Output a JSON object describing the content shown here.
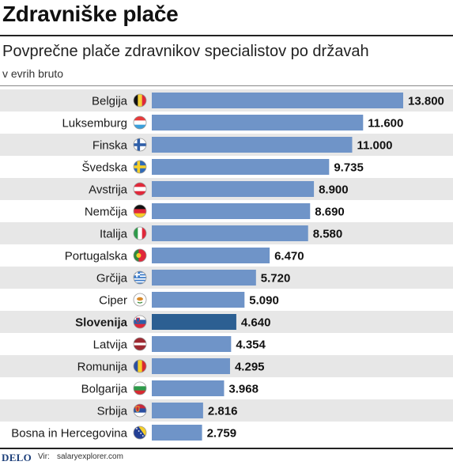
{
  "header": {
    "title": "Zdravniške plače",
    "subtitle": "Povprečne plače zdravnikov specialistov po državah",
    "unit": "v evrih bruto"
  },
  "footer": {
    "logo": "DELO",
    "source_label": "Vir:",
    "source": "salaryexplorer.com"
  },
  "colors": {
    "bar": "#6f94c8",
    "bar_highlight": "#2c5f92",
    "row_stripe": "#e7e7e7"
  },
  "chart_data": {
    "type": "bar",
    "orientation": "horizontal",
    "title": "Zdravniške plače",
    "subtitle": "Povprečne plače zdravnikov specialistov po državah",
    "xlabel": "",
    "ylabel": "",
    "unit": "v evrih bruto",
    "xlim": [
      0,
      13800
    ],
    "grid": false,
    "highlight": "Slovenija",
    "categories": [
      "Belgija",
      "Luksemburg",
      "Finska",
      "Švedska",
      "Avstrija",
      "Nemčija",
      "Italija",
      "Portugalska",
      "Grčija",
      "Ciper",
      "Slovenija",
      "Latvija",
      "Romunija",
      "Bolgarija",
      "Srbija",
      "Bosna in Hercegovina"
    ],
    "values": [
      13800,
      11600,
      11000,
      9735,
      8900,
      8690,
      8580,
      6470,
      5720,
      5090,
      4640,
      4354,
      4295,
      3968,
      2816,
      2759
    ],
    "value_labels": [
      "13.800",
      "11.600",
      "11.000",
      "9.735",
      "8.900",
      "8.690",
      "8.580",
      "6.470",
      "5.720",
      "5.090",
      "4.640",
      "4.354",
      "4.295",
      "3.968",
      "2.816",
      "2.759"
    ],
    "flags": [
      "flag-belgium-icon",
      "flag-luxembourg-icon",
      "flag-finland-icon",
      "flag-sweden-icon",
      "flag-austria-icon",
      "flag-germany-icon",
      "flag-italy-icon",
      "flag-portugal-icon",
      "flag-greece-icon",
      "flag-cyprus-icon",
      "flag-slovenia-icon",
      "flag-latvia-icon",
      "flag-romania-icon",
      "flag-bulgaria-icon",
      "flag-serbia-icon",
      "flag-bosnia-icon"
    ]
  }
}
